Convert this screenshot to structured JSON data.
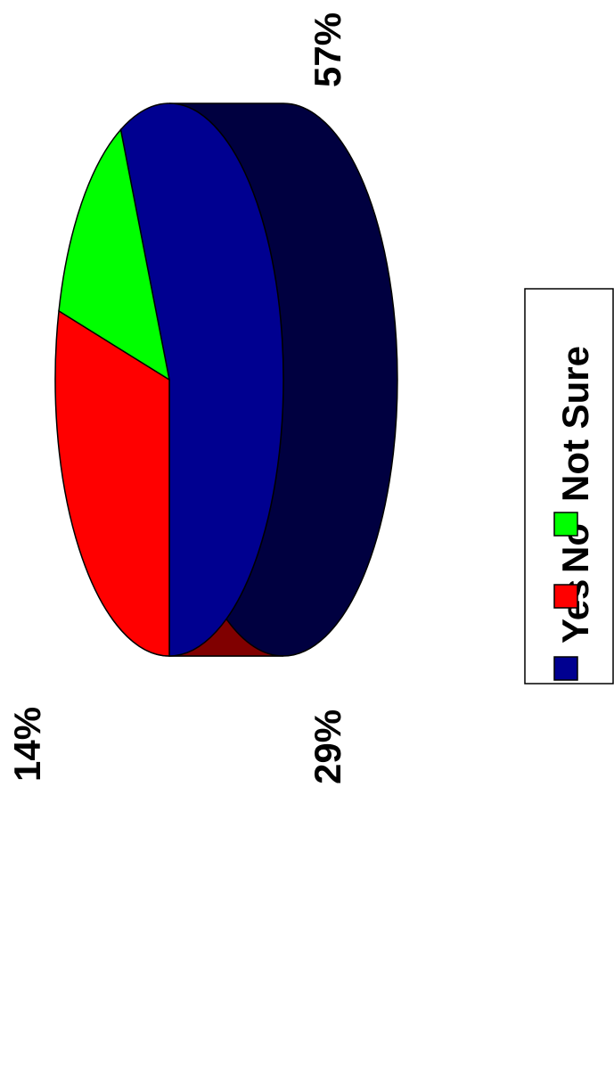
{
  "chart_data": {
    "type": "pie",
    "style": "3d",
    "orientation": "rotated-90-clockwise",
    "categories": [
      "Yes",
      "No",
      "Not Sure"
    ],
    "values": [
      57,
      29,
      14
    ],
    "value_labels": [
      "57%",
      "29%",
      "14%"
    ],
    "colors": {
      "Yes": "#000090",
      "No": "#FF0000",
      "Not Sure": "#00FF00"
    },
    "side_colors": {
      "Yes": "#000040",
      "No": "#800000",
      "Not Sure": "#008000"
    },
    "legend": {
      "position": "right",
      "items": [
        "Yes",
        "No",
        "Not Sure"
      ]
    }
  }
}
